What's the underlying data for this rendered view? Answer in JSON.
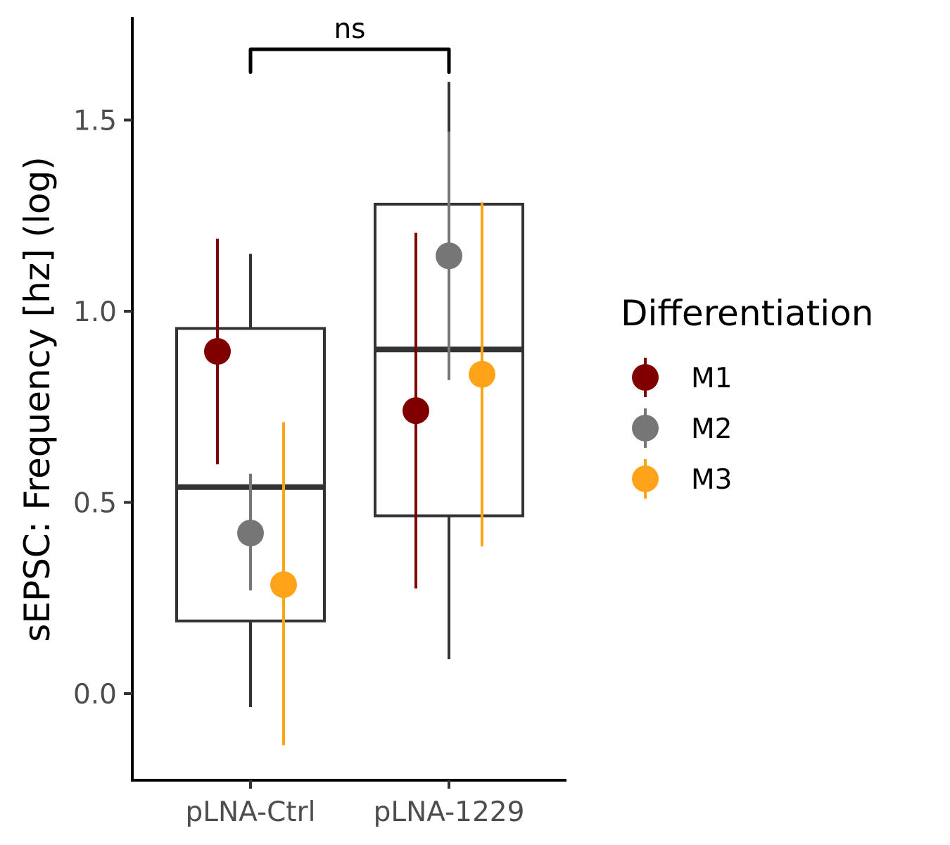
{
  "chart_data": {
    "type": "box",
    "ylabel": "sEPSC: Frequency [hz] (log)",
    "categories": [
      "pLNA-Ctrl",
      "pLNA-1229"
    ],
    "ylim": [
      -0.22,
      1.78
    ],
    "yticks": [
      0.0,
      0.5,
      1.0,
      1.5
    ],
    "ytick_labels": [
      "0.0",
      "0.5",
      "1.0",
      "1.5"
    ],
    "boxes": [
      {
        "category": "pLNA-Ctrl",
        "whisker_low": -0.035,
        "q1": 0.19,
        "median": 0.54,
        "q3": 0.955,
        "whisker_high": 1.15
      },
      {
        "category": "pLNA-1229",
        "whisker_low": 0.09,
        "q1": 0.465,
        "median": 0.9,
        "q3": 1.28,
        "whisker_high": 1.6
      }
    ],
    "legend": {
      "title": "Differentiation",
      "position": "right"
    },
    "series": [
      {
        "name": "M1",
        "color": "#800000",
        "points": [
          {
            "category": "pLNA-Ctrl",
            "mean": 0.895,
            "low": 0.6,
            "high": 1.19
          },
          {
            "category": "pLNA-1229",
            "mean": 0.74,
            "low": 0.275,
            "high": 1.205
          }
        ]
      },
      {
        "name": "M2",
        "color": "#767676",
        "points": [
          {
            "category": "pLNA-Ctrl",
            "mean": 0.42,
            "low": 0.27,
            "high": 0.575
          },
          {
            "category": "pLNA-1229",
            "mean": 1.145,
            "low": 0.82,
            "high": 1.47
          }
        ]
      },
      {
        "name": "M3",
        "color": "#FFA319",
        "points": [
          {
            "category": "pLNA-Ctrl",
            "mean": 0.285,
            "low": -0.135,
            "high": 0.71
          },
          {
            "category": "pLNA-1229",
            "mean": 0.835,
            "low": 0.385,
            "high": 1.285
          }
        ]
      }
    ],
    "significance": {
      "label": "ns",
      "from": "pLNA-Ctrl",
      "to": "pLNA-1229",
      "y": 1.685,
      "tip_y": 1.625
    },
    "grid": false
  }
}
